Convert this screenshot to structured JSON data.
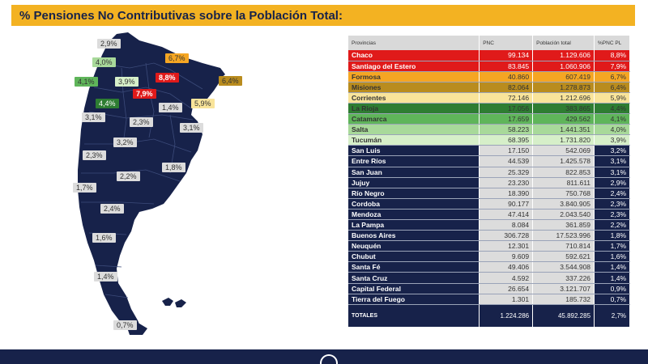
{
  "title": "% Pensiones No Contributivas sobre la Población Total:",
  "colors": {
    "navy": "#17224a",
    "header_bar": "#f3b222",
    "red": "#e01a1a",
    "orange": "#f5a623",
    "dark_gold": "#b98c1e",
    "light_yellow": "#f9e49a",
    "dark_green": "#2e7d32",
    "medium_green": "#5fb55a",
    "light_green": "#a8d99a",
    "pale_green": "#d6efc9",
    "light_gray": "#dcdcdc"
  },
  "chart_data": {
    "type": "table",
    "title": "% Pensiones No Contributivas sobre la Población Total:",
    "columns": [
      "Provincias",
      "PNC",
      "Población total",
      "%PNC PL"
    ],
    "rows": [
      {
        "provincia": "Chaco",
        "pnc": "99.134",
        "poblacion": "1.129.606",
        "pct": "8,8%",
        "color": "#e01a1a",
        "text": "#ffffff"
      },
      {
        "provincia": "Santiago del Estero",
        "pnc": "83.845",
        "poblacion": "1.060.906",
        "pct": "7,9%",
        "color": "#e01a1a",
        "text": "#ffffff"
      },
      {
        "provincia": "Formosa",
        "pnc": "40.860",
        "poblacion": "607.419",
        "pct": "6,7%",
        "color": "#f5a623",
        "text": "#333333"
      },
      {
        "provincia": "Misiones",
        "pnc": "82.064",
        "poblacion": "1.278.873",
        "pct": "6,4%",
        "color": "#b98c1e",
        "text": "#333333"
      },
      {
        "provincia": "Corrientes",
        "pnc": "72.146",
        "poblacion": "1.212.696",
        "pct": "5,9%",
        "color": "#f9e49a",
        "text": "#333333"
      },
      {
        "provincia": "La Rioja",
        "pnc": "17.056",
        "poblacion": "383.865",
        "pct": "4,4%",
        "color": "#2e7d32",
        "text": "#333333"
      },
      {
        "provincia": "Catamarca",
        "pnc": "17.659",
        "poblacion": "429.562",
        "pct": "4,1%",
        "color": "#5fb55a",
        "text": "#333333"
      },
      {
        "provincia": "Salta",
        "pnc": "58.223",
        "poblacion": "1.441.351",
        "pct": "4,0%",
        "color": "#a8d99a",
        "text": "#333333"
      },
      {
        "provincia": "Tucumán",
        "pnc": "68.395",
        "poblacion": "1.731.820",
        "pct": "3,9%",
        "color": "#d6efc9",
        "text": "#333333"
      },
      {
        "provincia": "San Luis",
        "pnc": "17.150",
        "poblacion": "542.069",
        "pct": "3,2%",
        "color": "#dcdcdc",
        "text": "#333333"
      },
      {
        "provincia": "Entre Ríos",
        "pnc": "44.539",
        "poblacion": "1.425.578",
        "pct": "3,1%",
        "color": "#dcdcdc",
        "text": "#333333"
      },
      {
        "provincia": "San Juan",
        "pnc": "25.329",
        "poblacion": "822.853",
        "pct": "3,1%",
        "color": "#dcdcdc",
        "text": "#333333"
      },
      {
        "provincia": "Jujuy",
        "pnc": "23.230",
        "poblacion": "811.611",
        "pct": "2,9%",
        "color": "#dcdcdc",
        "text": "#333333"
      },
      {
        "provincia": "Río Negro",
        "pnc": "18.390",
        "poblacion": "750.768",
        "pct": "2,4%",
        "color": "#dcdcdc",
        "text": "#333333"
      },
      {
        "provincia": "Cordoba",
        "pnc": "90.177",
        "poblacion": "3.840.905",
        "pct": "2,3%",
        "color": "#dcdcdc",
        "text": "#333333"
      },
      {
        "provincia": "Mendoza",
        "pnc": "47.414",
        "poblacion": "2.043.540",
        "pct": "2,3%",
        "color": "#dcdcdc",
        "text": "#333333"
      },
      {
        "provincia": "La Pampa",
        "pnc": "8.084",
        "poblacion": "361.859",
        "pct": "2,2%",
        "color": "#dcdcdc",
        "text": "#333333"
      },
      {
        "provincia": "Buenos Aires",
        "pnc": "306.728",
        "poblacion": "17.523.996",
        "pct": "1,8%",
        "color": "#dcdcdc",
        "text": "#333333"
      },
      {
        "provincia": "Neuquén",
        "pnc": "12.301",
        "poblacion": "710.814",
        "pct": "1,7%",
        "color": "#dcdcdc",
        "text": "#333333"
      },
      {
        "provincia": "Chubut",
        "pnc": "9.609",
        "poblacion": "592.621",
        "pct": "1,6%",
        "color": "#dcdcdc",
        "text": "#333333"
      },
      {
        "provincia": "Santa Fé",
        "pnc": "49.406",
        "poblacion": "3.544.908",
        "pct": "1,4%",
        "color": "#dcdcdc",
        "text": "#333333"
      },
      {
        "provincia": "Santa Cruz",
        "pnc": "4.592",
        "poblacion": "337.226",
        "pct": "1,4%",
        "color": "#dcdcdc",
        "text": "#333333"
      },
      {
        "provincia": "Capital Federal",
        "pnc": "26.654",
        "poblacion": "3.121.707",
        "pct": "0,9%",
        "color": "#dcdcdc",
        "text": "#333333"
      },
      {
        "provincia": "Tierra del Fuego",
        "pnc": "1.301",
        "poblacion": "185.732",
        "pct": "0,7%",
        "color": "#dcdcdc",
        "text": "#333333"
      }
    ],
    "totals": {
      "label": "TOTALES",
      "pnc": "1.224.286",
      "poblacion": "45.892.285",
      "pct": "2,7%"
    }
  },
  "map_labels": [
    {
      "text": "2,9%",
      "color": "#dcdcdc"
    },
    {
      "text": "6,7%",
      "color": "#f5a623"
    },
    {
      "text": "4,0%",
      "color": "#a8d99a"
    },
    {
      "text": "4,1%",
      "color": "#5fb55a"
    },
    {
      "text": "3,9%",
      "color": "#d6efc9"
    },
    {
      "text": "8,8%",
      "color": "#e01a1a"
    },
    {
      "text": "6,4%",
      "color": "#b98c1e"
    },
    {
      "text": "7,9%",
      "color": "#e01a1a"
    },
    {
      "text": "4,4%",
      "color": "#2e7d32"
    },
    {
      "text": "5,9%",
      "color": "#f9e49a"
    },
    {
      "text": "1,4%",
      "color": "#dcdcdc"
    },
    {
      "text": "3,1%",
      "color": "#dcdcdc"
    },
    {
      "text": "2,3%",
      "color": "#dcdcdc"
    },
    {
      "text": "3,1%",
      "color": "#dcdcdc"
    },
    {
      "text": "3,2%",
      "color": "#dcdcdc"
    },
    {
      "text": "2,3%",
      "color": "#dcdcdc"
    },
    {
      "text": "1,8%",
      "color": "#dcdcdc"
    },
    {
      "text": "2,2%",
      "color": "#dcdcdc"
    },
    {
      "text": "1,7%",
      "color": "#dcdcdc"
    },
    {
      "text": "2,4%",
      "color": "#dcdcdc"
    },
    {
      "text": "1,6%",
      "color": "#dcdcdc"
    },
    {
      "text": "1,4%",
      "color": "#dcdcdc"
    },
    {
      "text": "0,7%",
      "color": "#dcdcdc"
    }
  ]
}
